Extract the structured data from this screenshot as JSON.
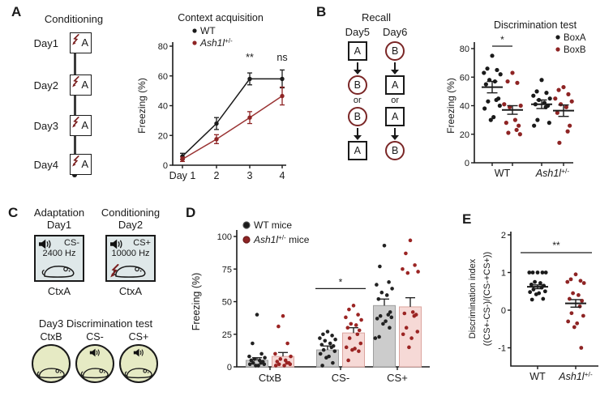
{
  "colors": {
    "wt": "#1a1a1a",
    "mutant": "#8e2424",
    "mutant_line": "#9a3333",
    "wt_bar_fill": "#cccccc",
    "mutant_bar_fill": "#f6d9d6",
    "context_a_bg": "#dfe8e9",
    "context_b_bg": "#e6eac4",
    "shock": "#7a1f1f"
  },
  "panels": {
    "a": {
      "label": "A",
      "schematic": {
        "title": "Conditioning",
        "days": [
          "Day1",
          "Day2",
          "Day3",
          "Day4"
        ],
        "context_letter": "A"
      }
    },
    "b": {
      "label": "B",
      "schematic": {
        "title": "Recall",
        "or_label": "or",
        "columns": [
          {
            "day": "Day5",
            "sequence": [
              {
                "shape": "square",
                "letter": "A"
              },
              {
                "shape": "circle",
                "letter": "B"
              },
              {
                "shape": "circle",
                "letter": "B"
              },
              {
                "shape": "square",
                "letter": "A"
              }
            ]
          },
          {
            "day": "Day6",
            "sequence": [
              {
                "shape": "circle",
                "letter": "B"
              },
              {
                "shape": "square",
                "letter": "A"
              },
              {
                "shape": "square",
                "letter": "A"
              },
              {
                "shape": "circle",
                "letter": "B"
              }
            ]
          }
        ]
      }
    },
    "c": {
      "label": "C",
      "stages": [
        {
          "title": "Adaptation",
          "day": "Day1",
          "cs": "CS-",
          "freq": "2400 Hz",
          "context": "CtxA",
          "shock": false
        },
        {
          "title": "Conditioning",
          "day": "Day2",
          "cs": "CS+",
          "freq": "10000 Hz",
          "context": "CtxA",
          "shock": true
        }
      ],
      "test_title": "Day3 Discrimination test",
      "test_conditions": [
        {
          "label": "CtxB",
          "speaker": false
        },
        {
          "label": "CS-",
          "speaker": true
        },
        {
          "label": "CS+",
          "speaker": true
        }
      ]
    },
    "d": {
      "label": "D"
    },
    "e": {
      "label": "E"
    }
  },
  "chart_data": [
    {
      "id": "context-acquisition",
      "type": "line",
      "title": "Context acquisition",
      "ylabel": "Freezing (%)",
      "ylim": [
        0,
        80
      ],
      "yticks": [
        0,
        20,
        40,
        60,
        80
      ],
      "xtick_labels": [
        "Day 1",
        "2",
        "3",
        "4"
      ],
      "legend": [
        {
          "label": "WT",
          "color": "#1a1a1a"
        },
        {
          "label": {
            "base": "Ash1l",
            "sup": "+/-"
          },
          "color": "#8e2424"
        }
      ],
      "series": [
        {
          "name": "WT",
          "color": "#1a1a1a",
          "line_color": "#1a1a1a",
          "values": [
            6,
            28,
            58,
            58
          ],
          "sem": [
            2,
            4,
            4,
            6
          ]
        },
        {
          "name": "Ash1l+/-",
          "color": "#8e2424",
          "line_color": "#9a3333",
          "values": [
            4,
            17.5,
            32,
            46.5
          ],
          "sem": [
            1.5,
            3,
            4,
            6
          ]
        }
      ],
      "annotations": [
        {
          "x_index": 2,
          "text": "**"
        },
        {
          "x_index": 3,
          "text": "ns"
        }
      ]
    },
    {
      "id": "context-discrimination-test",
      "type": "scatter",
      "title": "Discrimination test",
      "ylabel": "Freezing (%)",
      "ylim": [
        0,
        80
      ],
      "yticks": [
        0,
        20,
        40,
        60,
        80
      ],
      "legend": [
        {
          "label": "BoxA",
          "color": "#1a1a1a"
        },
        {
          "label": "BoxB",
          "color": "#8e2424"
        }
      ],
      "groups": [
        {
          "label": "WT"
        },
        {
          "label": {
            "base": "Ash1l",
            "sup": "+/-"
          }
        }
      ],
      "columns": [
        {
          "group": "WT",
          "series": "BoxA",
          "color": "#1a1a1a",
          "mean": 53,
          "sem": 4,
          "values": [
            75,
            66,
            65,
            63,
            62,
            58,
            57,
            55,
            45,
            44,
            43,
            40,
            38,
            32,
            30
          ]
        },
        {
          "group": "WT",
          "series": "BoxB",
          "color": "#8e2424",
          "mean": 37,
          "sem": 3,
          "values": [
            63,
            57,
            56,
            41,
            40,
            39,
            30,
            28,
            26,
            23,
            21,
            20
          ]
        },
        {
          "group": "Ash1l+/-",
          "series": "BoxA",
          "color": "#1a1a1a",
          "mean": 41,
          "sem": 3,
          "values": [
            58,
            50,
            49,
            47,
            45,
            44,
            42,
            41,
            40,
            39,
            30,
            28,
            26
          ]
        },
        {
          "group": "Ash1l+/-",
          "series": "BoxB",
          "color": "#8e2424",
          "mean": 36.5,
          "sem": 4,
          "values": [
            53,
            51,
            48,
            45,
            43,
            41,
            39,
            35,
            26,
            22,
            14
          ]
        }
      ],
      "significance": {
        "label": "*",
        "between_columns": [
          0,
          1
        ]
      }
    },
    {
      "id": "cue-discrimination-freezing",
      "type": "bar",
      "ylabel": "Freezing (%)",
      "ylim": [
        0,
        100
      ],
      "yticks": [
        0,
        25,
        50,
        75,
        100
      ],
      "categories": [
        "CtxB",
        "CS-",
        "CS+"
      ],
      "legend": [
        {
          "label": "WT mice",
          "color": "#1a1a1a",
          "ring": "#4a4a4a"
        },
        {
          "label": {
            "base": "Ash1l",
            "sup": "+/-",
            "suffix": " mice"
          },
          "color": "#8e2424",
          "ring": "#6b1a1a"
        }
      ],
      "series": [
        {
          "name": "WT mice",
          "color": "#222222",
          "bar_fill": "#cccccc",
          "bar_stroke": "#9e9e9e",
          "values": [
            5,
            13,
            47
          ],
          "sem": [
            2,
            3,
            5
          ],
          "points": [
            [
              40,
              18,
              10,
              8,
              7,
              6,
              5,
              5,
              4,
              3,
              3,
              2,
              2,
              1,
              1
            ],
            [
              27,
              25,
              24,
              22,
              21,
              20,
              18,
              17,
              16,
              15,
              13,
              12,
              10,
              8,
              7,
              3,
              1
            ],
            [
              93,
              77,
              65,
              63,
              60,
              57,
              55,
              52,
              42,
              40,
              39,
              38,
              37,
              35,
              33,
              30,
              23,
              22
            ]
          ]
        },
        {
          "name": "Ash1l+/- mice",
          "color": "#9b2423",
          "bar_fill": "#f6d9d6",
          "bar_stroke": "#dba49e",
          "values": [
            8,
            26,
            46
          ],
          "sem": [
            3,
            4,
            7
          ],
          "points": [
            [
              39,
              31,
              18,
              10,
              8,
              6,
              5,
              4,
              3,
              3,
              2,
              2,
              1,
              1
            ],
            [
              47,
              44,
              40,
              38,
              36,
              33,
              32,
              30,
              28,
              25,
              22,
              18,
              15,
              14,
              13,
              12,
              5
            ],
            [
              97,
              87,
              78,
              75,
              73,
              72,
              42,
              41,
              40,
              39,
              30,
              27,
              25,
              22,
              15
            ]
          ]
        }
      ],
      "significance": {
        "label": "*",
        "category_index": 1
      }
    },
    {
      "id": "discrimination-index",
      "type": "scatter",
      "ylabel_lines": [
        "Discrimination index",
        "((CS+-CS-)/(CS-+CS+))"
      ],
      "ylim": [
        -1.3,
        2
      ],
      "yticks": [
        -1,
        0,
        1,
        2
      ],
      "groups": [
        {
          "label": "WT"
        },
        {
          "label": {
            "base": "Ash1l",
            "sup": "+/-"
          }
        }
      ],
      "columns": [
        {
          "group": "WT",
          "color": "#1a1a1a",
          "mean": 0.62,
          "sem": 0.05,
          "values": [
            1.0,
            1.0,
            1.0,
            1.0,
            1.0,
            0.75,
            0.72,
            0.68,
            0.65,
            0.6,
            0.55,
            0.5,
            0.48,
            0.45,
            0.42,
            0.3,
            0.28
          ]
        },
        {
          "group": "Ash1l+/-",
          "color": "#8e2424",
          "mean": 0.18,
          "sem": 0.1,
          "values": [
            0.95,
            0.82,
            0.78,
            0.75,
            0.72,
            0.45,
            0.4,
            0.3,
            0.25,
            0.1,
            -0.08,
            -0.15,
            -0.3,
            -0.35,
            -0.45,
            -1.0
          ]
        }
      ],
      "significance": {
        "label": "**"
      }
    }
  ]
}
